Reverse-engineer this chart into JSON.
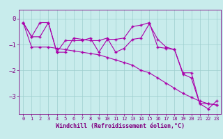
{
  "xlabel": "Windchill (Refroidissement éolien,°C)",
  "bg_color": "#c8ecec",
  "line_color": "#aa00aa",
  "xlim": [
    -0.5,
    23.5
  ],
  "ylim": [
    -3.7,
    0.35
  ],
  "xticks": [
    0,
    1,
    2,
    3,
    4,
    5,
    6,
    7,
    8,
    9,
    10,
    11,
    12,
    13,
    14,
    15,
    16,
    17,
    18,
    19,
    20,
    21,
    22,
    23
  ],
  "yticks": [
    0,
    -1,
    -2,
    -3
  ],
  "curve1_x": [
    0,
    1,
    2,
    3,
    4,
    5,
    6,
    7,
    8,
    9,
    10,
    11,
    12,
    13,
    14,
    15,
    16,
    17,
    18,
    19,
    20,
    21,
    22,
    23
  ],
  "curve1_y": [
    -0.15,
    -1.1,
    -1.1,
    -1.1,
    -1.15,
    -1.2,
    -1.25,
    -1.3,
    -1.35,
    -1.4,
    -1.5,
    -1.6,
    -1.7,
    -1.8,
    -2.0,
    -2.1,
    -2.3,
    -2.5,
    -2.7,
    -2.9,
    -3.05,
    -3.2,
    -3.3,
    -3.35
  ],
  "curve2_x": [
    0,
    1,
    2,
    3,
    4,
    5,
    6,
    7,
    8,
    9,
    10,
    11,
    12,
    13,
    14,
    15,
    16,
    17,
    18,
    19,
    20,
    21,
    22,
    23
  ],
  "curve2_y": [
    -0.15,
    -0.7,
    -0.15,
    -0.15,
    -1.3,
    -0.85,
    -0.85,
    -0.85,
    -0.75,
    -1.3,
    -0.8,
    -0.8,
    -0.75,
    -0.3,
    -0.25,
    -0.15,
    -1.1,
    -1.15,
    -1.2,
    -2.15,
    -2.3,
    -3.3,
    -3.3,
    -3.35
  ],
  "curve3_x": [
    0,
    1,
    2,
    3,
    4,
    5,
    6,
    7,
    8,
    9,
    10,
    11,
    12,
    13,
    14,
    15,
    16,
    17,
    18,
    19,
    20,
    21,
    22,
    23
  ],
  "curve3_y": [
    -0.15,
    -0.7,
    -0.7,
    -0.15,
    -1.3,
    -1.3,
    -0.75,
    -0.8,
    -0.85,
    -0.85,
    -0.75,
    -1.3,
    -1.15,
    -0.8,
    -0.75,
    -0.2,
    -0.8,
    -1.1,
    -1.2,
    -2.1,
    -2.1,
    -3.3,
    -3.5,
    -3.2
  ],
  "grid_color": "#9ecece",
  "spine_color": "#800080",
  "tick_color": "#800080",
  "xlabel_fontsize": 6.0,
  "ytick_fontsize": 6.5,
  "xtick_fontsize": 5.0
}
